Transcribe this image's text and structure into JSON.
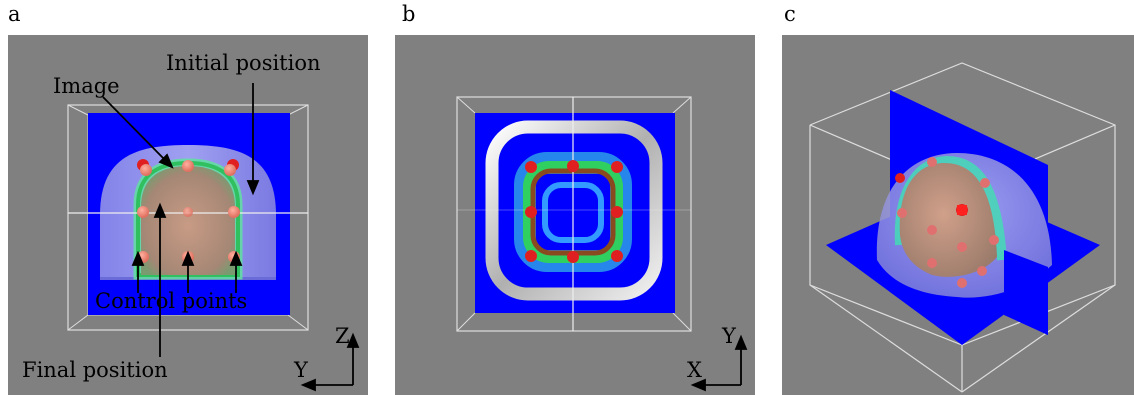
{
  "panels": [
    {
      "letter": "a"
    },
    {
      "letter": "b"
    },
    {
      "letter": "c"
    }
  ],
  "labels": {
    "image": "Image",
    "initial_position": "Initial position",
    "control_points": "Control points",
    "final_position": "Final position"
  },
  "axes": {
    "a": {
      "vertical": "Z",
      "horizontal": "Y"
    },
    "b": {
      "vertical": "Y",
      "horizontal": "X"
    }
  },
  "colors": {
    "background": "#808080",
    "plane": "#0000ff",
    "control_point": "#e02020",
    "box_edge": "#dddddd"
  }
}
